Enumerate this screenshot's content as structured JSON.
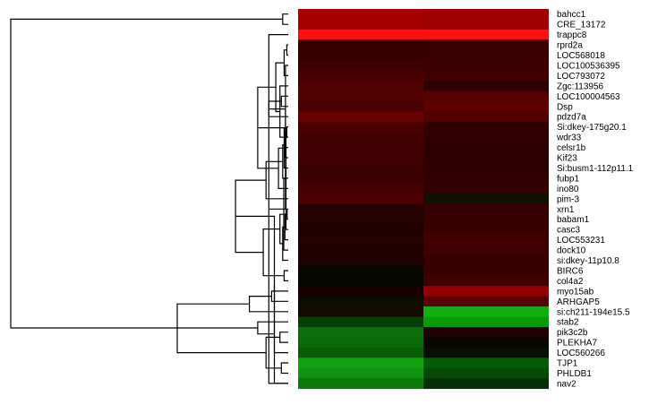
{
  "chart_data": {
    "type": "heatmap",
    "title": "",
    "xlabel": "",
    "ylabel": "",
    "columns": 2,
    "rows": [
      {
        "label": "bahcc1",
        "values": [
          "#a80000",
          "#a20000"
        ]
      },
      {
        "label": "CRE_13172",
        "values": [
          "#a60000",
          "#a00000"
        ]
      },
      {
        "label": "trappc8",
        "values": [
          "#ff1010",
          "#ff1010"
        ]
      },
      {
        "label": "rprd2a",
        "values": [
          "#3a0000",
          "#3c0000"
        ]
      },
      {
        "label": "LOC568018",
        "values": [
          "#360000",
          "#380000"
        ]
      },
      {
        "label": "LOC100536395",
        "values": [
          "#3c0000",
          "#3c0000"
        ]
      },
      {
        "label": "LOC793072",
        "values": [
          "#480000",
          "#400000"
        ]
      },
      {
        "label": "Zgc:113956",
        "values": [
          "#500000",
          "#2c0000"
        ]
      },
      {
        "label": "LOC100004563",
        "values": [
          "#520000",
          "#560000"
        ]
      },
      {
        "label": "Dsp",
        "values": [
          "#4a0000",
          "#620000"
        ]
      },
      {
        "label": "pdzd7a",
        "values": [
          "#6a0000",
          "#520000"
        ]
      },
      {
        "label": "Si:dkey-175g20.1",
        "values": [
          "#4a0000",
          "#300000"
        ]
      },
      {
        "label": "wdr33",
        "values": [
          "#440000",
          "#2e0000"
        ]
      },
      {
        "label": "celsr1b",
        "values": [
          "#3e0000",
          "#2a0000"
        ]
      },
      {
        "label": "Kif23",
        "values": [
          "#400000",
          "#2c0000"
        ]
      },
      {
        "label": "Si:busm1-112p11.1",
        "values": [
          "#3a0000",
          "#2e0000"
        ]
      },
      {
        "label": "fubp1",
        "values": [
          "#3c0000",
          "#2e0000"
        ]
      },
      {
        "label": "ino80",
        "values": [
          "#460000",
          "#320000"
        ]
      },
      {
        "label": "pim-3",
        "values": [
          "#4e0000",
          "#101000"
        ]
      },
      {
        "label": "xrn1",
        "values": [
          "#260000",
          "#320000"
        ]
      },
      {
        "label": "babam1",
        "values": [
          "#240000",
          "#360000"
        ]
      },
      {
        "label": "casc3",
        "values": [
          "#220000",
          "#3a0000"
        ]
      },
      {
        "label": "LOC553231",
        "values": [
          "#240000",
          "#420000"
        ]
      },
      {
        "label": "dock10",
        "values": [
          "#220000",
          "#3e0000"
        ]
      },
      {
        "label": "si:dkey-11p10.8",
        "values": [
          "#200000",
          "#360000"
        ]
      },
      {
        "label": "BIRC6",
        "values": [
          "#080800",
          "#380000"
        ]
      },
      {
        "label": "col4a2",
        "values": [
          "#060800",
          "#400000"
        ]
      },
      {
        "label": "myo15ab",
        "values": [
          "#180000",
          "#900000"
        ]
      },
      {
        "label": "ARHGAP5",
        "values": [
          "#0c0c00",
          "#5a0000"
        ]
      },
      {
        "label": "si:ch211-194e15.5",
        "values": [
          "#140800",
          "#10b010"
        ]
      },
      {
        "label": "stab2",
        "values": [
          "#064006",
          "#0a9a0a"
        ]
      },
      {
        "label": "pik3c2b",
        "values": [
          "#0a6e0a",
          "#200000"
        ]
      },
      {
        "label": "PLEKHA7",
        "values": [
          "#0a6a0a",
          "#080800"
        ]
      },
      {
        "label": "LOC560266",
        "values": [
          "#0a5e0a",
          "#061006"
        ]
      },
      {
        "label": "TJP1",
        "values": [
          "#10a010",
          "#065a06"
        ]
      },
      {
        "label": "PHLDB1",
        "values": [
          "#109410",
          "#064a06"
        ]
      },
      {
        "label": "nav2",
        "values": [
          "#0a7a0a",
          "#043004"
        ]
      }
    ],
    "dendrogram": {
      "merges": [
        [
          0,
          1,
          0.02
        ],
        [
          36,
          2,
          0.07
        ],
        [
          3,
          4,
          0.005
        ],
        [
          38,
          5,
          0.01
        ],
        [
          39,
          6,
          0.015
        ],
        [
          40,
          7,
          0.03
        ],
        [
          8,
          9,
          0.025
        ],
        [
          41,
          42,
          0.045
        ],
        [
          43,
          10,
          0.07
        ],
        [
          11,
          12,
          0.005
        ],
        [
          45,
          13,
          0.01
        ],
        [
          46,
          14,
          0.012
        ],
        [
          47,
          15,
          0.015
        ],
        [
          48,
          16,
          0.02
        ],
        [
          49,
          17,
          0.035
        ],
        [
          50,
          18,
          0.08
        ],
        [
          44,
          51,
          0.11
        ],
        [
          19,
          20,
          0.004
        ],
        [
          53,
          21,
          0.008
        ],
        [
          54,
          22,
          0.012
        ],
        [
          55,
          23,
          0.016
        ],
        [
          56,
          24,
          0.02
        ],
        [
          25,
          26,
          0.015
        ],
        [
          57,
          58,
          0.03
        ],
        [
          27,
          28,
          0.06
        ],
        [
          59,
          60,
          0.09
        ],
        [
          61,
          29,
          0.14
        ],
        [
          52,
          62,
          0.19
        ],
        [
          31,
          32,
          0.03
        ],
        [
          64,
          33,
          0.05
        ],
        [
          34,
          35,
          0.025
        ],
        [
          66,
          36,
          0.05
        ],
        [
          65,
          67,
          0.08
        ],
        [
          30,
          68,
          0.11
        ],
        [
          63,
          69,
          0.4
        ],
        [
          37,
          70,
          1.0
        ]
      ]
    }
  }
}
